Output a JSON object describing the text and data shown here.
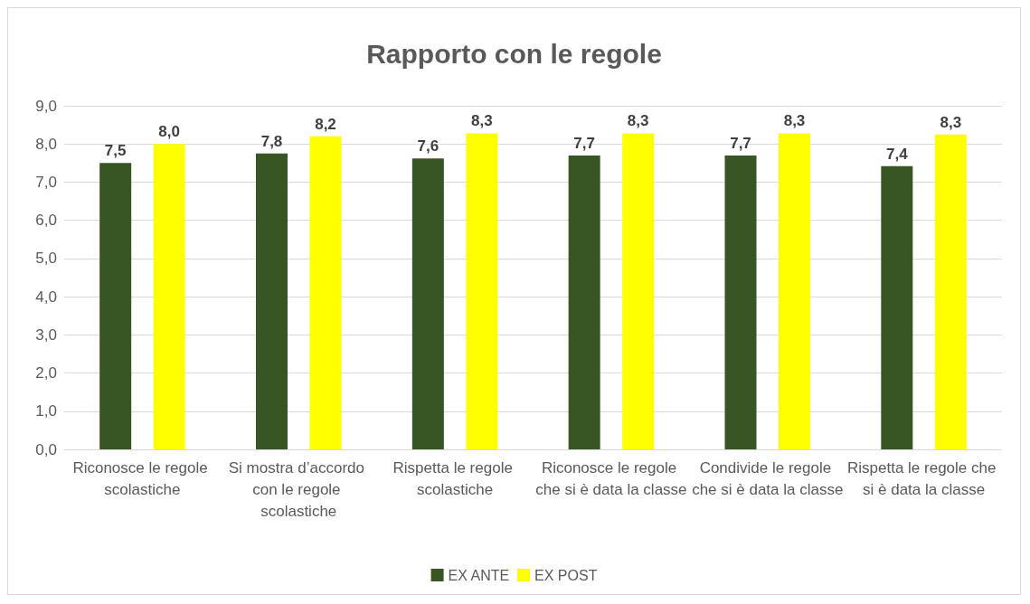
{
  "chart_data": {
    "type": "bar",
    "title": "Rapporto con le regole",
    "categories": [
      "Riconosce le regole scolastiche",
      "Si mostra d’accordo con le regole scolastiche",
      "Rispetta le regole scolastiche",
      "Riconosce le regole che si è data la classe",
      "Condivide le regole che si è data la classe",
      "Rispetta le regole che si è data la classe"
    ],
    "series": [
      {
        "name": "EX ANTE",
        "color": "#375623",
        "values": [
          7.5,
          7.75,
          7.62,
          7.7,
          7.7,
          7.42
        ],
        "value_labels": [
          "7,5",
          "7,8",
          "7,6",
          "7,7",
          "7,7",
          "7,4"
        ]
      },
      {
        "name": "EX POST",
        "color": "#ffff00",
        "values": [
          8.0,
          8.2,
          8.28,
          8.28,
          8.28,
          8.25
        ],
        "value_labels": [
          "8,0",
          "8,2",
          "8,3",
          "8,3",
          "8,3",
          "8,3"
        ]
      }
    ],
    "ylim": [
      0,
      9
    ],
    "yticks": [
      {
        "value": 0,
        "label": "0,0"
      },
      {
        "value": 1,
        "label": "1,0"
      },
      {
        "value": 2,
        "label": "2,0"
      },
      {
        "value": 3,
        "label": "3,0"
      },
      {
        "value": 4,
        "label": "4,0"
      },
      {
        "value": 5,
        "label": "5,0"
      },
      {
        "value": 6,
        "label": "6,0"
      },
      {
        "value": 7,
        "label": "7,0"
      },
      {
        "value": 8,
        "label": "8,0"
      },
      {
        "value": 9,
        "label": "9,0"
      }
    ],
    "grid": "y",
    "legend": "bottom"
  }
}
